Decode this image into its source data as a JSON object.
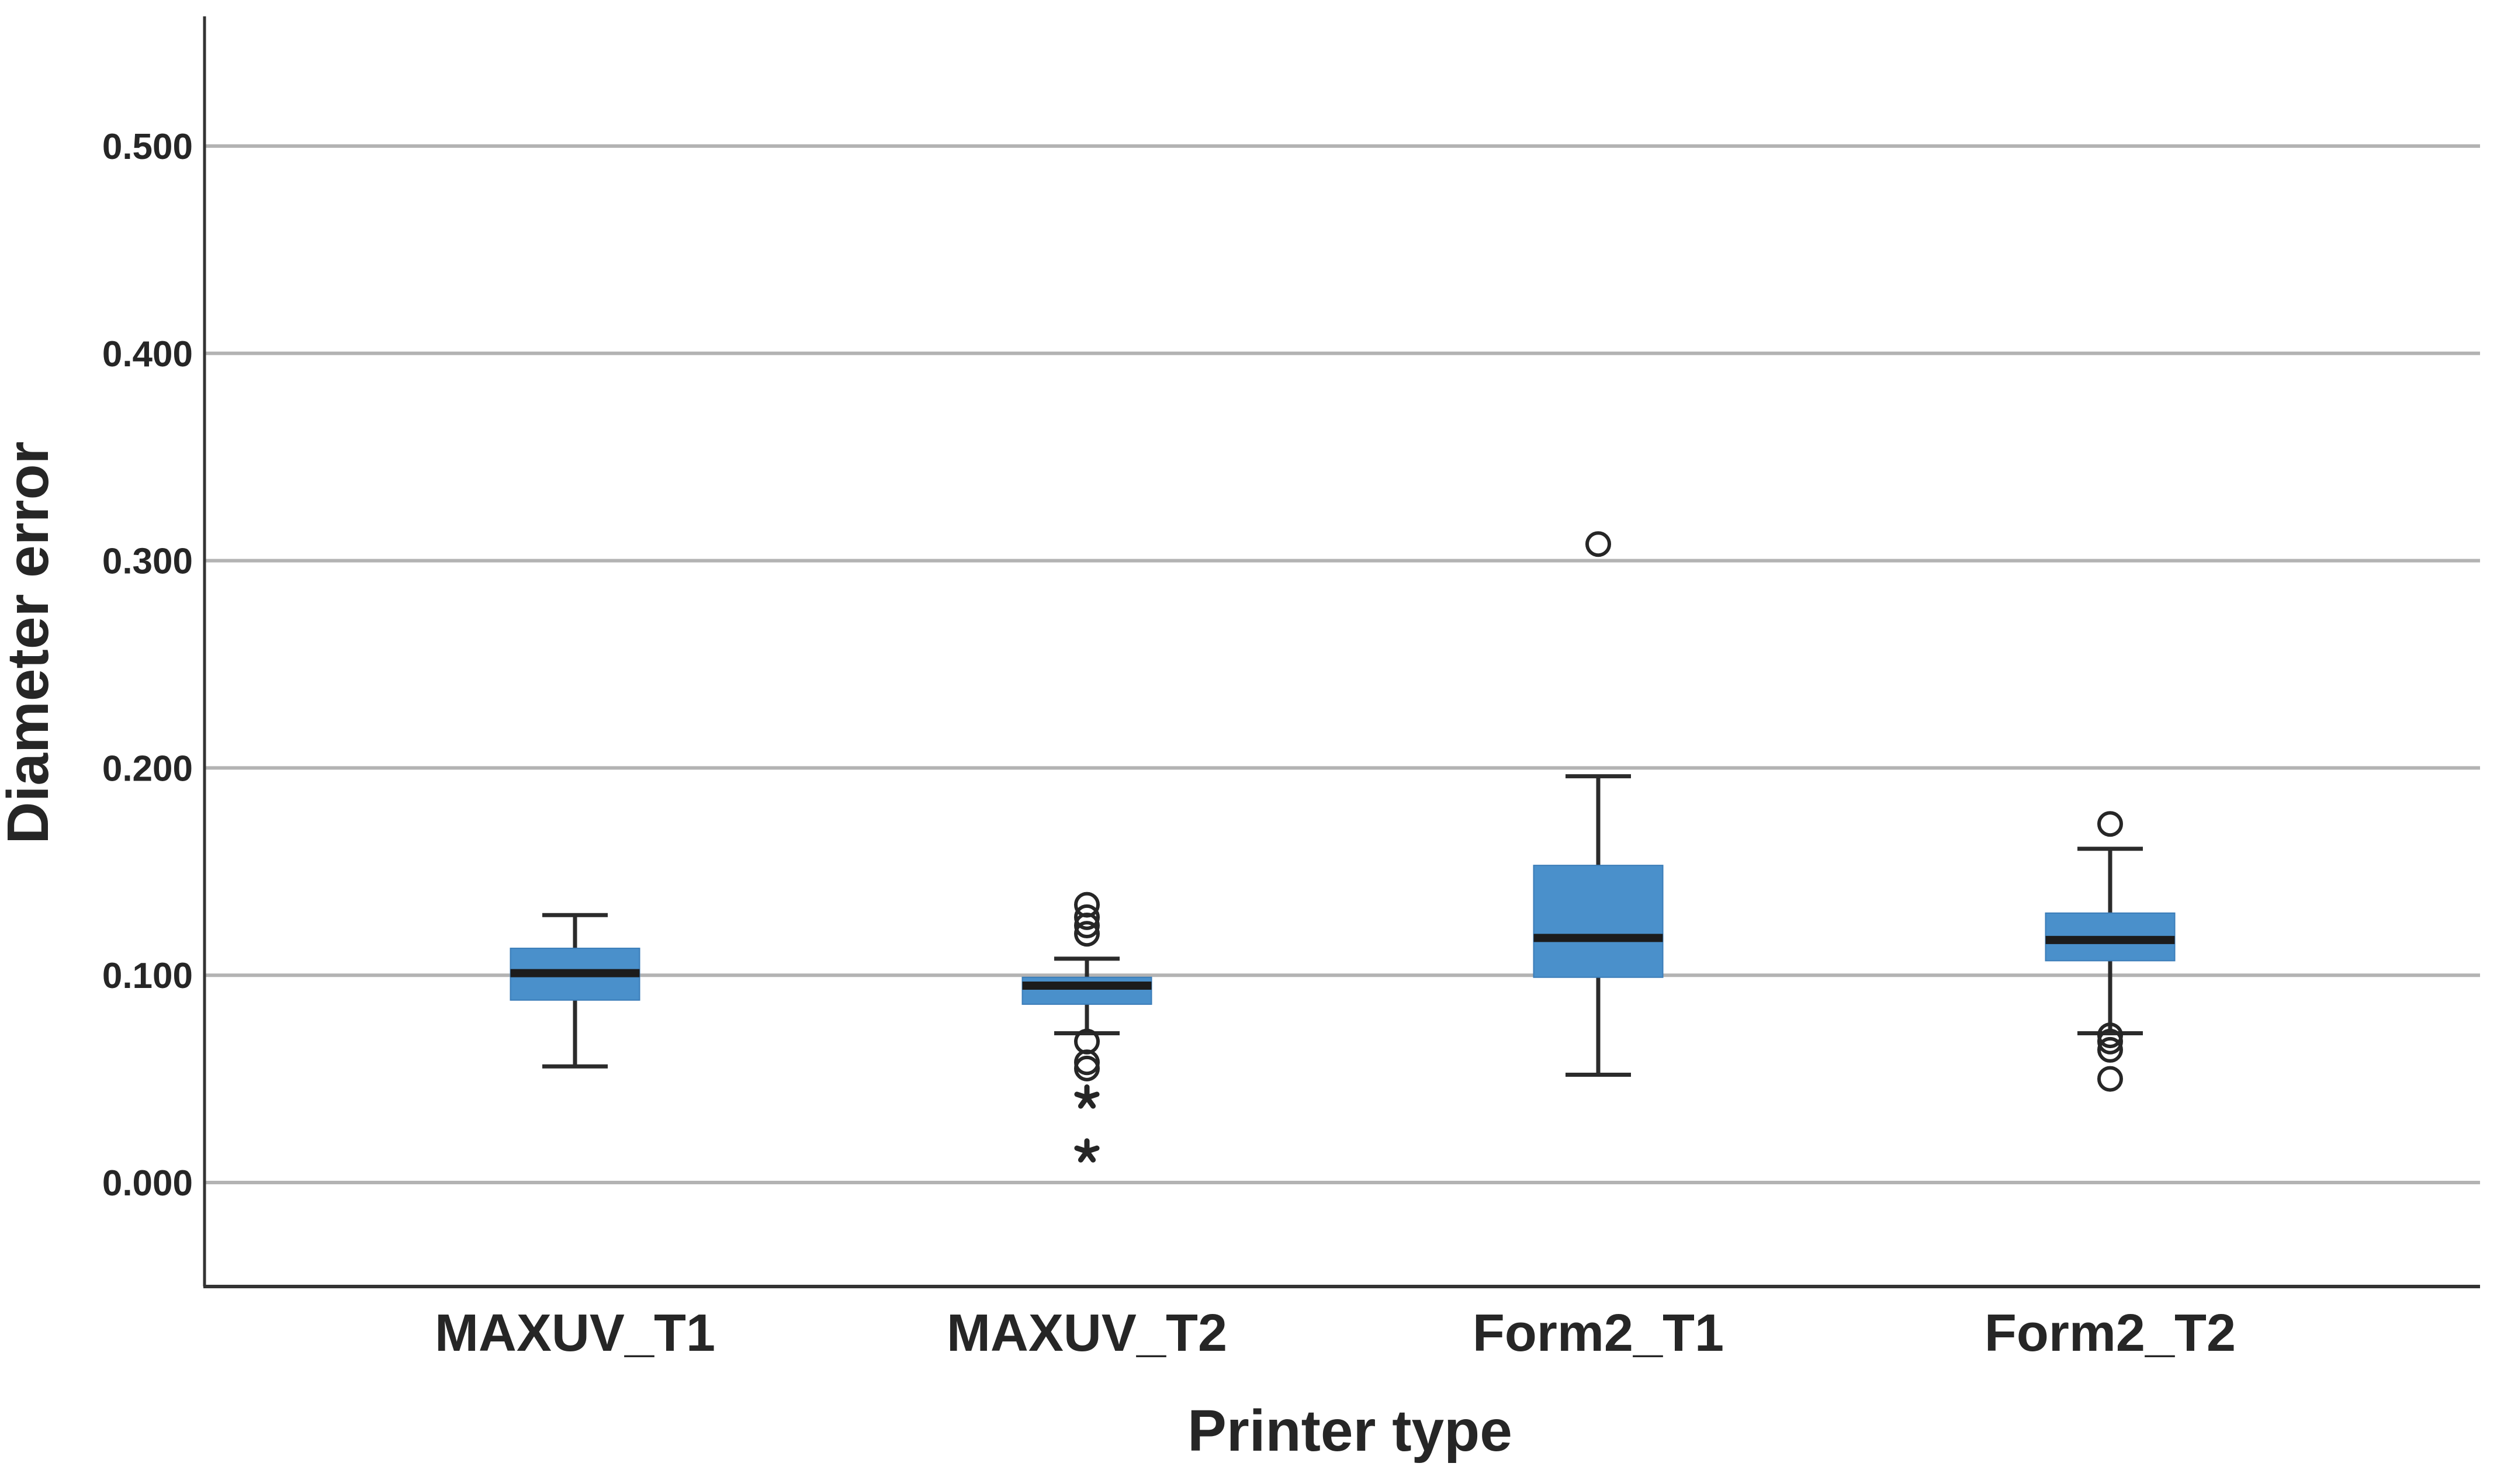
{
  "chart_data": {
    "type": "boxplot",
    "title": "",
    "xlabel": "Printer type",
    "ylabel": "Diameter error",
    "categories": [
      "MAXUV_T1",
      "MAXUV_T2",
      "Form2_T1",
      "Form2_T2"
    ],
    "y_axis": {
      "min": -0.05,
      "max": 0.56,
      "tick_values": [
        0.0,
        0.1,
        0.2,
        0.3,
        0.4,
        0.5
      ],
      "tick_labels": [
        "0.000",
        "0.100",
        "0.200",
        "0.300",
        "0.400",
        "0.500"
      ],
      "grid": true,
      "grid_orientation": "horizontal"
    },
    "legend": "none",
    "series": [
      {
        "category": "MAXUV_T1",
        "whisker_low": 0.056,
        "q1": 0.088,
        "median": 0.101,
        "q3": 0.113,
        "whisker_high": 0.129,
        "outliers": [],
        "extremes": []
      },
      {
        "category": "MAXUV_T2",
        "whisker_low": 0.072,
        "q1": 0.086,
        "median": 0.095,
        "q3": 0.099,
        "whisker_high": 0.108,
        "outliers": [
          0.134,
          0.128,
          0.124,
          0.12,
          0.068,
          0.058,
          0.055
        ],
        "extremes": [
          0.041,
          0.015
        ]
      },
      {
        "category": "Form2_T1",
        "whisker_low": 0.052,
        "q1": 0.099,
        "median": 0.118,
        "q3": 0.153,
        "whisker_high": 0.196,
        "outliers": [
          0.308
        ],
        "extremes": []
      },
      {
        "category": "Form2_T2",
        "whisker_low": 0.072,
        "q1": 0.107,
        "median": 0.117,
        "q3": 0.13,
        "whisker_high": 0.161,
        "outliers": [
          0.173,
          0.071,
          0.068,
          0.064,
          0.05
        ],
        "extremes": []
      }
    ],
    "colors": {
      "box_fill": "#4a90cb",
      "box_border": "#3a7cb8",
      "median": "#1c1c1c",
      "whisker": "#2b2b2b",
      "outlier": "#262626",
      "grid": "#b3b3b3",
      "axis": "#333333",
      "text": "#262626"
    }
  }
}
